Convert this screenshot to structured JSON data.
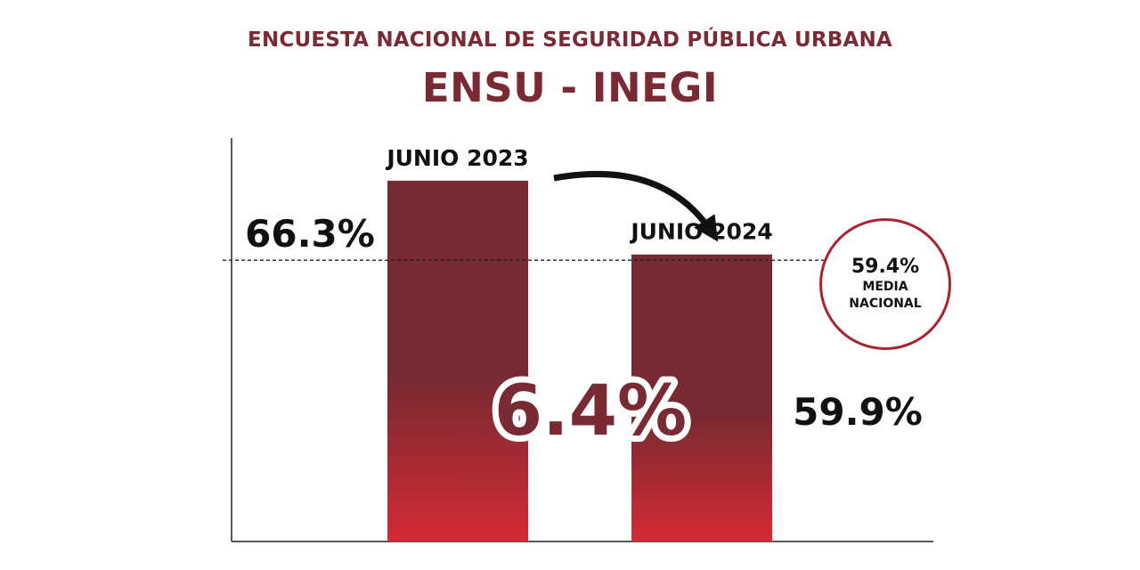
{
  "header": {
    "title": "ENCUESTA NACIONAL DE SEGURIDAD PÚBLICA URBANA",
    "subtitle": "ENSU - INEGI"
  },
  "badge": {
    "value": "59.4%",
    "line1": "MEDIA",
    "line2": "NACIONAL"
  },
  "colors": {
    "bar_top": "#772a32",
    "bar_bottom": "#d42a34",
    "title": "#7a2a33",
    "badge_border": "#a8232f"
  },
  "chart_data": {
    "type": "bar",
    "categories": [
      "JUNIO 2023",
      "JUNIO 2024"
    ],
    "values": [
      66.3,
      59.9
    ],
    "value_labels": [
      "66.3%",
      "59.9%"
    ],
    "reference_line": {
      "value": 59.4,
      "label": "59.4% MEDIA NACIONAL",
      "style": "dashed"
    },
    "difference_label": "6.4%",
    "ylim": [
      35,
      70
    ],
    "grid": false,
    "legend": "none"
  }
}
